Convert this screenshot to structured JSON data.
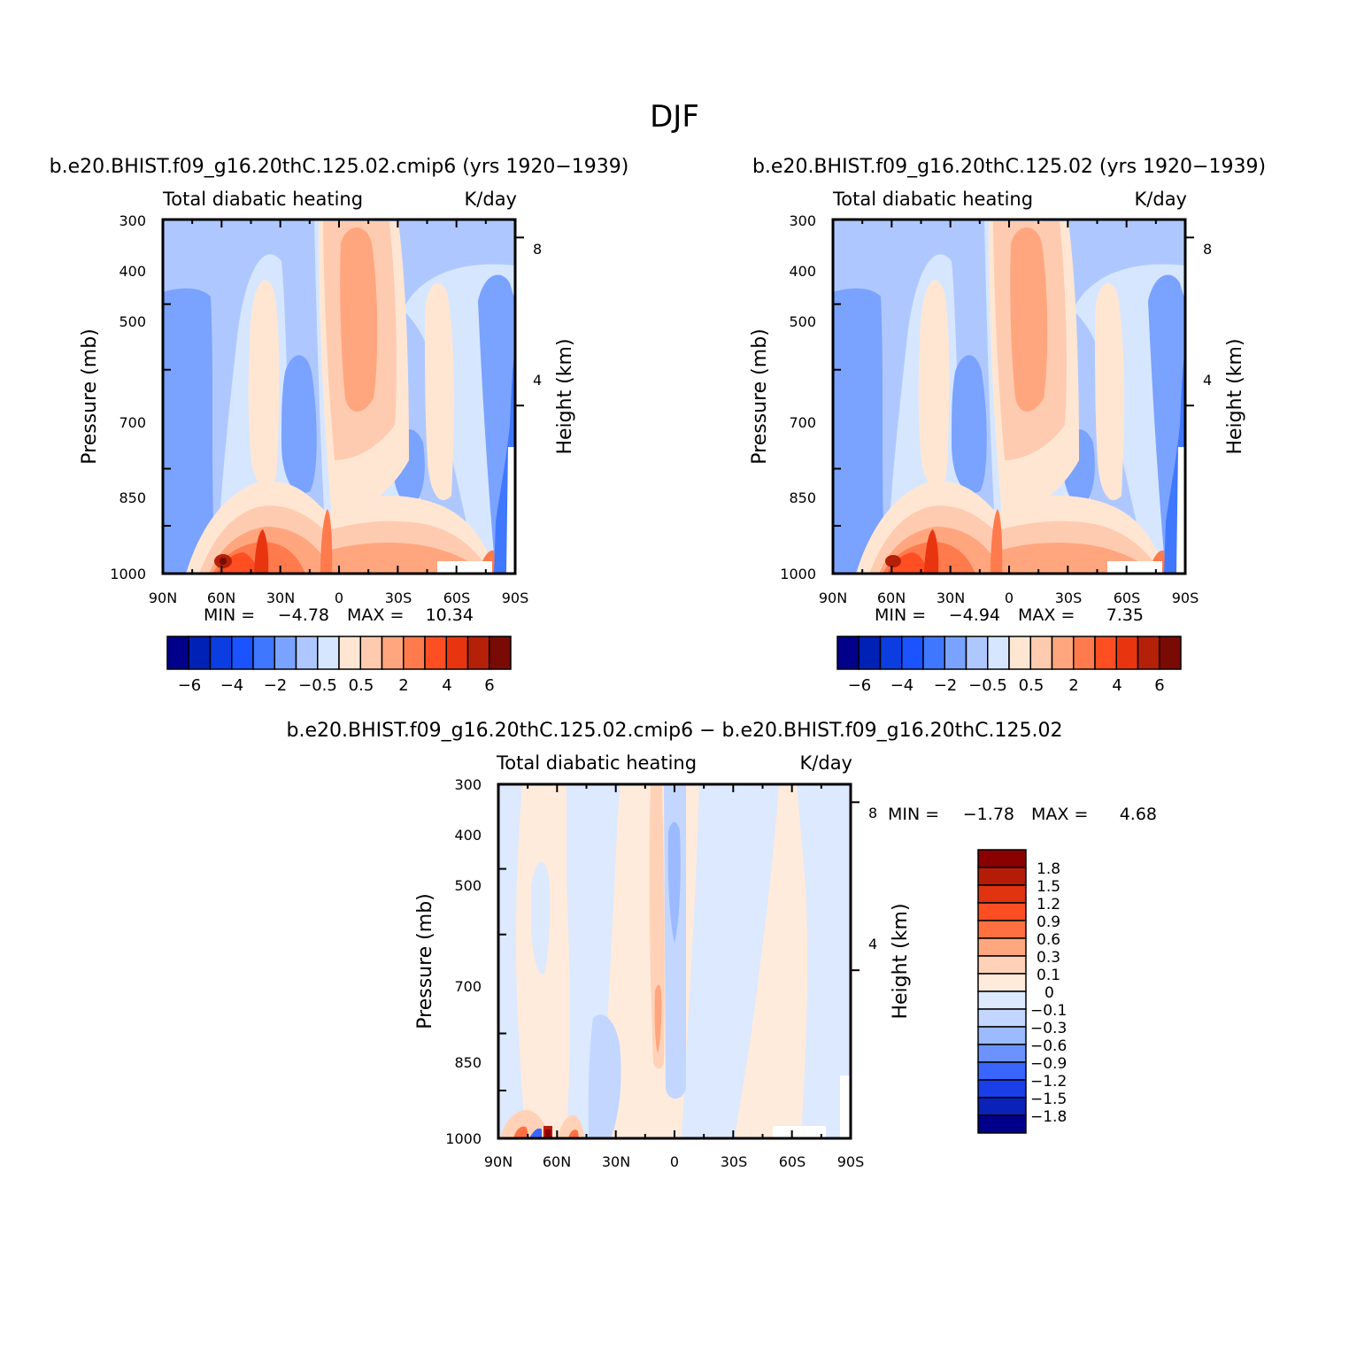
{
  "figure": {
    "season": "DJF"
  },
  "chart_data": [
    {
      "type": "heatmap",
      "title": "b.e20.BHIST.f09_g16.20thC.125.02.cmip6 (yrs 1920−1939)",
      "left_subtitle": "Total diabatic heating",
      "right_subtitle": "K/day",
      "ylabel": "Pressure (mb)",
      "ylabel_right": "Height (km)",
      "x_tick_labels": [
        "90N",
        "60N",
        "30N",
        "0",
        "30S",
        "60S",
        "90S"
      ],
      "y_tick_labels": [
        "300",
        "400",
        "500",
        "700",
        "850",
        "1000"
      ],
      "y_ticks_right": [
        "8",
        "4"
      ],
      "stats": {
        "min_label": "MIN =",
        "min_value": "−4.78",
        "max_label": "MAX =",
        "max_value": "10.34"
      },
      "colorbar": {
        "orientation": "horizontal",
        "tick_labels": [
          "−6",
          "−4",
          "−2",
          "−0.5",
          "0.5",
          "2",
          "4",
          "6"
        ],
        "colors": [
          "#00008b",
          "#0021b5",
          "#0b3de0",
          "#1a53ff",
          "#4077ff",
          "#7aa2ff",
          "#aec8ff",
          "#d6e6ff",
          "#ffe6d2",
          "#ffcbb0",
          "#ffa67f",
          "#ff7a4c",
          "#ff4e22",
          "#e83510",
          "#b52008",
          "#7a0a04"
        ]
      }
    },
    {
      "type": "heatmap",
      "title": "b.e20.BHIST.f09_g16.20thC.125.02 (yrs 1920−1939)",
      "left_subtitle": "Total diabatic heating",
      "right_subtitle": "K/day",
      "ylabel": "Pressure (mb)",
      "ylabel_right": "Height (km)",
      "x_tick_labels": [
        "90N",
        "60N",
        "30N",
        "0",
        "30S",
        "60S",
        "90S"
      ],
      "y_tick_labels": [
        "300",
        "400",
        "500",
        "700",
        "850",
        "1000"
      ],
      "y_ticks_right": [
        "8",
        "4"
      ],
      "stats": {
        "min_label": "MIN =",
        "min_value": "−4.94",
        "max_label": "MAX =",
        "max_value": "7.35"
      },
      "colorbar": {
        "orientation": "horizontal",
        "tick_labels": [
          "−6",
          "−4",
          "−2",
          "−0.5",
          "0.5",
          "2",
          "4",
          "6"
        ],
        "colors": [
          "#00008b",
          "#0021b5",
          "#0b3de0",
          "#1a53ff",
          "#4077ff",
          "#7aa2ff",
          "#aec8ff",
          "#d6e6ff",
          "#ffe6d2",
          "#ffcbb0",
          "#ffa67f",
          "#ff7a4c",
          "#ff4e22",
          "#e83510",
          "#b52008",
          "#7a0a04"
        ]
      }
    },
    {
      "type": "heatmap",
      "title": "b.e20.BHIST.f09_g16.20thC.125.02.cmip6 − b.e20.BHIST.f09_g16.20thC.125.02",
      "left_subtitle": "Total diabatic heating",
      "right_subtitle": "K/day",
      "ylabel": "Pressure (mb)",
      "ylabel_right": "Height (km)",
      "x_tick_labels": [
        "90N",
        "60N",
        "30N",
        "0",
        "30S",
        "60S",
        "90S"
      ],
      "y_tick_labels": [
        "300",
        "400",
        "500",
        "700",
        "850",
        "1000"
      ],
      "y_ticks_right": [
        "8",
        "4"
      ],
      "stats": {
        "min_label": "MIN =",
        "min_value": "−1.78",
        "max_label": "MAX =",
        "max_value": "4.68"
      },
      "colorbar": {
        "orientation": "vertical",
        "tick_labels": [
          "1.8",
          "1.5",
          "1.2",
          "0.9",
          "0.6",
          "0.3",
          "0.1",
          "0",
          "−0.1",
          "−0.3",
          "−0.6",
          "−0.9",
          "−1.2",
          "−1.5",
          "−1.8"
        ],
        "colors": [
          "#8b0000",
          "#b51c08",
          "#e0330f",
          "#ff4e22",
          "#ff7040",
          "#ffa67f",
          "#ffd2b8",
          "#ffebdc",
          "#dce9ff",
          "#c2d6ff",
          "#9bbaff",
          "#6b92ff",
          "#3a66ff",
          "#1a3ee8",
          "#0a22b8",
          "#00008b"
        ]
      }
    }
  ]
}
